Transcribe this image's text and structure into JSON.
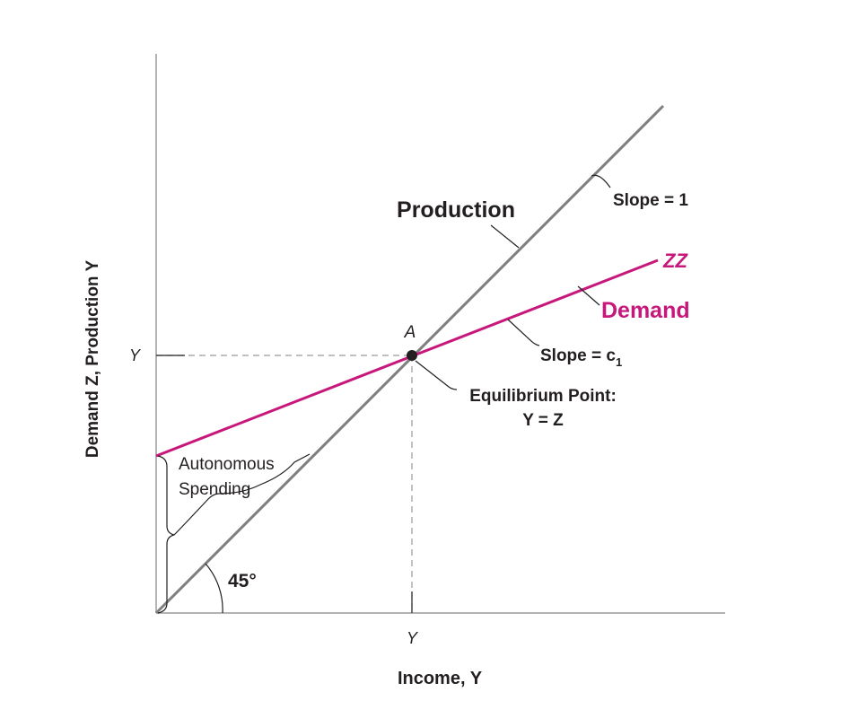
{
  "labels": {
    "y_axis_title": "Demand Z, Production Y",
    "x_axis_title": "Income, Y",
    "y_tick": "Y",
    "x_tick": "Y",
    "production": "Production",
    "slope_one": "Slope = 1",
    "zz": "ZZ",
    "demand": "Demand",
    "point_a": "A",
    "slope_c1_prefix": "Slope = c",
    "slope_c1_sub": "1",
    "equilibrium_line1": "Equilibrium Point:",
    "equilibrium_line2": "Y = Z",
    "autonomous_line1": "Autonomous",
    "autonomous_line2": "Spending",
    "angle": "45°"
  },
  "colors": {
    "axis": "#b3b3b3",
    "production_line": "#7f7f7f",
    "demand_line": "#c7177b",
    "text": "#231f20",
    "leader": "#231f20"
  }
}
